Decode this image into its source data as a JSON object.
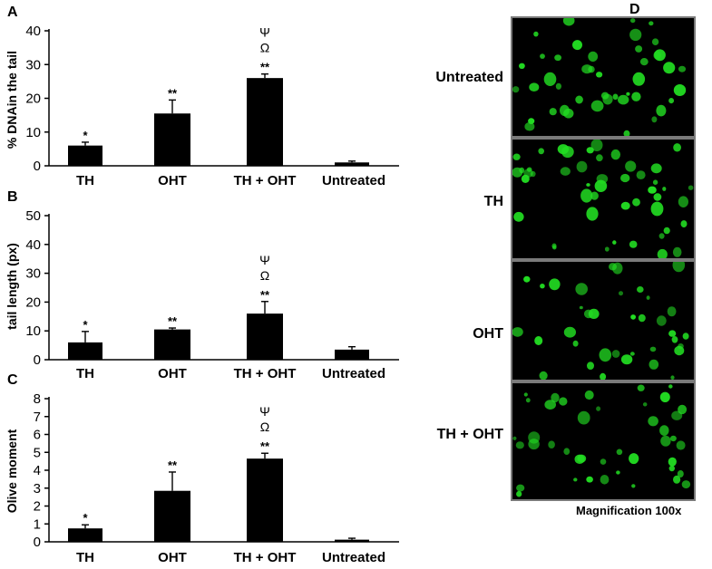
{
  "chart_data": [
    {
      "panel": "A",
      "type": "bar",
      "ylabel": "% DNAin the tail",
      "ylim": [
        0,
        40
      ],
      "yticks": [
        0,
        10,
        20,
        30,
        40
      ],
      "categories": [
        "TH",
        "OHT",
        "TH + OHT",
        "Untreated"
      ],
      "values": [
        6,
        15.5,
        26,
        1
      ],
      "errors": [
        1,
        4,
        1.2,
        0.4
      ],
      "significance": [
        [
          "*"
        ],
        [
          "**"
        ],
        [
          "**",
          "Ω",
          "Ψ"
        ],
        []
      ]
    },
    {
      "panel": "B",
      "type": "bar",
      "ylabel": "tail length (px)",
      "ylim": [
        0,
        50
      ],
      "yticks": [
        0,
        10,
        20,
        30,
        40,
        50
      ],
      "categories": [
        "TH",
        "OHT",
        "TH + OHT",
        "Untreated"
      ],
      "values": [
        6,
        10.5,
        16,
        3.5
      ],
      "errors": [
        3.8,
        0.5,
        4.2,
        1
      ],
      "significance": [
        [
          "*"
        ],
        [
          "**"
        ],
        [
          "**",
          "Ω",
          "Ψ"
        ],
        []
      ]
    },
    {
      "panel": "C",
      "type": "bar",
      "ylabel": "Olive moment",
      "ylim": [
        0,
        8
      ],
      "yticks": [
        0,
        1,
        2,
        3,
        4,
        5,
        6,
        7,
        8
      ],
      "categories": [
        "TH",
        "OHT",
        "TH + OHT",
        "Untreated"
      ],
      "values": [
        0.75,
        2.85,
        4.65,
        0.12
      ],
      "errors": [
        0.2,
        1.05,
        0.3,
        0.08
      ],
      "significance": [
        [
          "*"
        ],
        [
          "**"
        ],
        [
          "**",
          "Ω",
          "Ψ"
        ],
        []
      ]
    }
  ],
  "panel_d": {
    "letter": "D",
    "images": [
      {
        "label": "Untreated"
      },
      {
        "label": "TH"
      },
      {
        "label": "OHT"
      },
      {
        "label": "TH  + OHT"
      }
    ],
    "caption": "Magnification 100x",
    "dot_color": "#22dd22"
  },
  "colors": {
    "bar": "#000000",
    "background": "#ffffff",
    "frame": "#7a7a7a"
  }
}
